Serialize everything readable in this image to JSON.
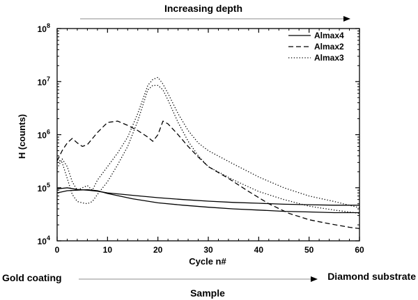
{
  "chart_data": {
    "type": "line",
    "title": "Increasing depth",
    "xlabel": "Cycle n#",
    "ylabel": "H (counts)",
    "xlim": [
      0,
      60
    ],
    "ylim_log10": [
      4,
      8
    ],
    "yscale": "log",
    "x_ticks": [
      "0",
      "10",
      "20",
      "30",
      "40",
      "50",
      "60"
    ],
    "y_ticks": [
      {
        "base": "10",
        "exp": "4"
      },
      {
        "base": "10",
        "exp": "5"
      },
      {
        "base": "10",
        "exp": "6"
      },
      {
        "base": "10",
        "exp": "7"
      },
      {
        "base": "10",
        "exp": "8"
      }
    ],
    "legend_position": "top-right",
    "series": [
      {
        "name": "Almax4",
        "style": "solid",
        "lines": [
          {
            "x": [
              0,
              2,
              4,
              6,
              8,
              10,
              15,
              20,
              25,
              30,
              35,
              40,
              45,
              50,
              55,
              60
            ],
            "y": [
              95000,
              100000,
              93000,
              90000,
              86000,
              80000,
              72000,
              65000,
              60000,
              56000,
              53000,
              51000,
              49000,
              48000,
              47000,
              47000
            ]
          },
          {
            "x": [
              0,
              2,
              4,
              6,
              8,
              10,
              15,
              20,
              25,
              30,
              35,
              40,
              45,
              50,
              55,
              60
            ],
            "y": [
              80000,
              88000,
              90000,
              92000,
              88000,
              78000,
              62000,
              52000,
              47000,
              43000,
              40000,
              38000,
              36000,
              35000,
              34000,
              34000
            ]
          }
        ]
      },
      {
        "name": "Almax2",
        "style": "dashed",
        "lines": [
          {
            "x": [
              0,
              1,
              2,
              3,
              4,
              5,
              6,
              8,
              10,
              12,
              14,
              16,
              18,
              19,
              20,
              21,
              22,
              24,
              26,
              28,
              30,
              34,
              38,
              42,
              46,
              50,
              54,
              58,
              60
            ],
            "y": [
              320000,
              500000,
              700000,
              850000,
              700000,
              600000,
              650000,
              1100000,
              1700000,
              1800000,
              1500000,
              1200000,
              900000,
              750000,
              1000000,
              1800000,
              1600000,
              1000000,
              600000,
              380000,
              250000,
              150000,
              85000,
              50000,
              33000,
              25000,
              21000,
              18000,
              17000
            ]
          }
        ]
      },
      {
        "name": "Almax3",
        "style": "dotted",
        "lines": [
          {
            "x": [
              0,
              1,
              2,
              3,
              4,
              5,
              6,
              7,
              8,
              10,
              12,
              14,
              16,
              18,
              19,
              20,
              21,
              22,
              24,
              26,
              28,
              30,
              35,
              40,
              45,
              50,
              55,
              60
            ],
            "y": [
              230000,
              350000,
              250000,
              130000,
              90000,
              100000,
              110000,
              90000,
              140000,
              250000,
              450000,
              900000,
              2500000,
              8500000,
              11000000,
              12000000,
              9000000,
              6000000,
              2500000,
              1200000,
              700000,
              500000,
              280000,
              160000,
              100000,
              70000,
              55000,
              42000
            ]
          },
          {
            "x": [
              0,
              1,
              2,
              3,
              4,
              5,
              6,
              7,
              8,
              10,
              12,
              14,
              16,
              18,
              19,
              20,
              21,
              22,
              24,
              26,
              28,
              30,
              35,
              40,
              45,
              50,
              55,
              60
            ],
            "y": [
              350000,
              300000,
              150000,
              75000,
              55000,
              52000,
              50000,
              55000,
              75000,
              130000,
              270000,
              600000,
              1800000,
              7000000,
              8500000,
              8500000,
              7000000,
              4500000,
              1700000,
              750000,
              400000,
              250000,
              140000,
              85000,
              60000,
              45000,
              38000,
              33000
            ]
          }
        ]
      }
    ],
    "annotations": {
      "top_label": "Increasing depth",
      "bottom_left": "Gold coating",
      "bottom_right": "Diamond substrate",
      "bottom_center": "Sample"
    }
  }
}
